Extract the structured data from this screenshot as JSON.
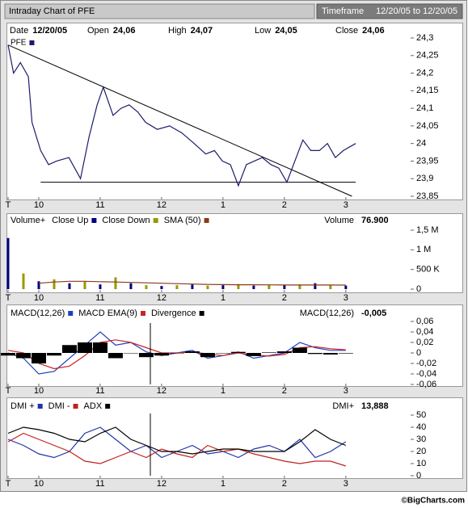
{
  "header": {
    "title": "Intraday Chart of PFE",
    "timeframe_label": "Timeframe",
    "timeframe": "12/20/05 to 12/20/05"
  },
  "info": [
    {
      "label": "Date",
      "value": "12/20/05"
    },
    {
      "label": "Open",
      "value": "24,06"
    },
    {
      "label": "High",
      "value": "24,07"
    },
    {
      "label": "Low",
      "value": "24,05"
    },
    {
      "label": "Close",
      "value": "24,06"
    }
  ],
  "footer": "©BigCharts.com",
  "chart_data": [
    {
      "type": "line",
      "x": [
        9.5,
        9.59,
        9.7,
        9.83,
        9.89,
        10.03,
        10.16,
        10.29,
        10.49,
        10.68,
        10.82,
        10.95,
        11.05,
        11.21,
        11.34,
        11.47,
        11.61,
        11.74,
        11.93,
        12.13,
        12.33,
        12.53,
        12.72,
        12.86,
        12.99,
        13.12,
        13.25,
        13.38,
        13.51,
        13.64,
        13.78,
        13.91,
        14.04,
        14.17,
        14.3,
        14.43,
        14.57,
        14.7,
        14.83,
        14.96,
        15.16
      ],
      "series": [
        {
          "name": "PFE",
          "color": "#1c1c6b",
          "values": [
            24.28,
            24.2,
            24.23,
            24.19,
            24.06,
            23.98,
            23.94,
            23.95,
            23.96,
            23.9,
            24.02,
            24.11,
            24.16,
            24.08,
            24.1,
            24.11,
            24.09,
            24.06,
            24.04,
            24.05,
            24.03,
            24.0,
            23.97,
            23.98,
            23.95,
            23.94,
            23.88,
            23.94,
            23.95,
            23.96,
            23.94,
            23.93,
            23.89,
            23.95,
            24.01,
            23.98,
            23.98,
            24.0,
            23.96,
            23.98,
            24.0
          ]
        }
      ],
      "lines": [
        {
          "x": [
            9.5,
            15.1
          ],
          "y": [
            24.28,
            23.85
          ]
        },
        {
          "x": [
            10.03,
            15.16
          ],
          "y": [
            23.89,
            23.89
          ]
        }
      ],
      "xlim": [
        9.5,
        15.16
      ],
      "xticks": [
        {
          "value": 9.5,
          "label": "T"
        },
        10,
        11,
        12,
        {
          "value": 13,
          "label": "1"
        },
        {
          "value": 14,
          "label": "2"
        },
        {
          "value": 15,
          "label": "3"
        }
      ],
      "ylim": [
        23.85,
        24.3
      ],
      "yticks": [
        {
          "value": 23.85,
          "label": "23,85"
        },
        {
          "value": 23.9,
          "label": "23,9"
        },
        {
          "value": 23.95,
          "label": "23,95"
        },
        24,
        {
          "value": 24.05,
          "label": "24,05"
        },
        {
          "value": 24.1,
          "label": "24,1"
        },
        {
          "value": 24.15,
          "label": "24,15"
        },
        {
          "value": 24.2,
          "label": "24,2"
        },
        {
          "value": 24.25,
          "label": "24,25"
        },
        {
          "value": 24.3,
          "label": "24,3"
        }
      ]
    },
    {
      "type": "bar",
      "legend_title": "Volume+",
      "readout": {
        "label": "Volume",
        "value": "76.900"
      },
      "x": [
        9.5,
        9.75,
        10,
        10.25,
        10.5,
        10.75,
        11,
        11.25,
        11.5,
        11.75,
        12,
        12.25,
        12.5,
        12.75,
        13,
        13.25,
        13.5,
        13.75,
        14,
        14.25,
        14.5,
        14.75,
        15
      ],
      "series": [
        {
          "name": "Close Up",
          "color": "#000080",
          "style": "bar",
          "values": [
            1300000,
            null,
            200000,
            null,
            150000,
            null,
            120000,
            null,
            150000,
            null,
            80000,
            null,
            120000,
            null,
            100000,
            null,
            90000,
            null,
            100000,
            null,
            150000,
            null,
            90000
          ]
        },
        {
          "name": "Close Down",
          "color": "#999900",
          "style": "bar",
          "values": [
            null,
            400000,
            null,
            250000,
            null,
            200000,
            null,
            300000,
            null,
            100000,
            null,
            100000,
            null,
            90000,
            null,
            130000,
            null,
            110000,
            null,
            120000,
            null,
            100000,
            null
          ]
        },
        {
          "name": "SMA (50)",
          "color": "#8b3a1a",
          "style": "line",
          "values": [
            null,
            null,
            150000,
            180000,
            200000,
            200000,
            190000,
            180000,
            170000,
            160000,
            150000,
            140000,
            130000,
            120000,
            115000,
            110000,
            110000,
            108000,
            105000,
            105000,
            105000,
            104000,
            103000
          ]
        }
      ],
      "xlim": [
        9.5,
        15.16
      ],
      "xticks": [
        {
          "value": 9.5,
          "label": "T"
        },
        10,
        11,
        12,
        {
          "value": 13,
          "label": "1"
        },
        {
          "value": 14,
          "label": "2"
        },
        {
          "value": 15,
          "label": "3"
        }
      ],
      "ylim": [
        0,
        1500000
      ],
      "yticks": [
        0,
        {
          "value": 500000,
          "label": "500 K"
        },
        {
          "value": 1000000,
          "label": "1 M"
        },
        {
          "value": 1500000,
          "label": "1,5 M"
        }
      ]
    },
    {
      "type": "line",
      "readout": {
        "label": "MACD(12,26)",
        "value": "-0,005"
      },
      "x": [
        9.5,
        9.75,
        10,
        10.25,
        10.5,
        10.75,
        11,
        11.25,
        11.5,
        11.75,
        12,
        12.25,
        12.5,
        12.75,
        13,
        13.25,
        13.5,
        13.75,
        14,
        14.25,
        14.5,
        14.75,
        15
      ],
      "series": [
        {
          "name": "MACD(12,26)",
          "color": "#1f3fbf",
          "style": "line",
          "values": [
            0,
            -0.01,
            -0.04,
            -0.035,
            -0.01,
            0.015,
            0.04,
            0.015,
            0.02,
            0.002,
            -0.005,
            0,
            0.005,
            -0.01,
            -0.005,
            0.002,
            -0.01,
            -0.005,
            0,
            0.02,
            0.01,
            0.005,
            0.005
          ]
        },
        {
          "name": "MACD EMA(9)",
          "color": "#cc2222",
          "style": "line",
          "values": [
            0.005,
            0,
            -0.02,
            -0.03,
            -0.025,
            -0.005,
            0.02,
            0.025,
            0.02,
            0.01,
            0,
            0,
            0.002,
            -0.002,
            -0.005,
            0,
            -0.004,
            -0.006,
            -0.003,
            0.01,
            0.012,
            0.008,
            0.006
          ]
        },
        {
          "name": "Divergence",
          "color": "#000000",
          "style": "bar",
          "values": [
            -0.005,
            -0.01,
            -0.02,
            -0.005,
            0.015,
            0.02,
            0.02,
            -0.01,
            0,
            -0.008,
            -0.005,
            0,
            0.003,
            -0.008,
            0,
            0.002,
            -0.006,
            0.001,
            0.003,
            0.01,
            -0.002,
            -0.003,
            -0.001
          ]
        }
      ],
      "xlim": [
        9.5,
        15.16
      ],
      "xticks": [
        {
          "value": 9.5,
          "label": "T"
        },
        10,
        11,
        12,
        {
          "value": 13,
          "label": "1"
        },
        {
          "value": 14,
          "label": "2"
        },
        {
          "value": 15,
          "label": "3"
        }
      ],
      "ylim": [
        -0.06,
        0.06
      ],
      "yticks": [
        {
          "value": -0.06,
          "label": "-0,06"
        },
        {
          "value": -0.04,
          "label": "-0,04"
        },
        {
          "value": -0.02,
          "label": "-0,02"
        },
        0,
        {
          "value": 0.02,
          "label": "0,02"
        },
        {
          "value": 0.04,
          "label": "0,04"
        },
        {
          "value": 0.06,
          "label": "0,06"
        }
      ]
    },
    {
      "type": "line",
      "readout": {
        "label": "DMI+",
        "value": "13,888"
      },
      "x": [
        9.5,
        9.75,
        10,
        10.25,
        10.5,
        10.75,
        11,
        11.25,
        11.5,
        11.75,
        12,
        12.25,
        12.5,
        12.75,
        13,
        13.25,
        13.5,
        13.75,
        14,
        14.25,
        14.5,
        14.75,
        15
      ],
      "series": [
        {
          "name": "DMI +",
          "color": "#2233aa",
          "style": "line",
          "values": [
            30,
            25,
            18,
            15,
            20,
            35,
            40,
            30,
            20,
            25,
            15,
            20,
            25,
            18,
            20,
            15,
            22,
            25,
            20,
            30,
            15,
            20,
            28
          ]
        },
        {
          "name": "DMI -",
          "color": "#c02020",
          "style": "line",
          "values": [
            28,
            35,
            30,
            25,
            20,
            12,
            10,
            15,
            20,
            15,
            22,
            18,
            15,
            25,
            20,
            22,
            18,
            15,
            12,
            10,
            12,
            12,
            8
          ]
        },
        {
          "name": "ADX",
          "color": "#000000",
          "style": "line",
          "values": [
            35,
            40,
            38,
            35,
            30,
            28,
            35,
            40,
            30,
            25,
            20,
            20,
            18,
            20,
            22,
            22,
            20,
            20,
            20,
            28,
            38,
            30,
            25
          ]
        }
      ],
      "xlim": [
        9.5,
        15.16
      ],
      "xticks": [
        {
          "value": 9.5,
          "label": "T"
        },
        10,
        11,
        12,
        {
          "value": 13,
          "label": "1"
        },
        {
          "value": 14,
          "label": "2"
        },
        {
          "value": 15,
          "label": "3"
        }
      ],
      "ylim": [
        0,
        50
      ],
      "yticks": [
        0,
        10,
        20,
        30,
        40,
        50
      ]
    }
  ]
}
